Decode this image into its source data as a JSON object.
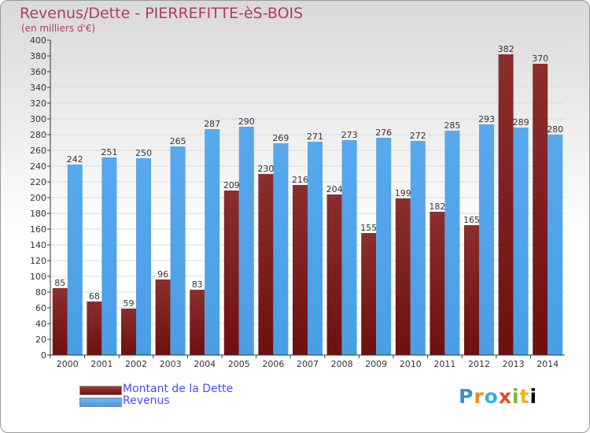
{
  "header": {
    "title": "Revenus/Dette - PIERREFITTE-èS-BOIS",
    "subtitle": "(en milliers d'€)"
  },
  "legend": {
    "items": [
      {
        "label": "Montant de la Dette",
        "color": "#6e1010"
      },
      {
        "label": "Revenus",
        "color": "#4a9ee6"
      }
    ]
  },
  "logo": {
    "letters": [
      "P",
      "r",
      "o",
      "x",
      "i",
      "t",
      "i"
    ]
  },
  "colors": {
    "debt": "#6e1010",
    "revenue": "#4a9ee6",
    "grid": "#dddddd",
    "axis": "#333333",
    "text": "#333333"
  },
  "chart_data": {
    "type": "bar",
    "categories": [
      "2000",
      "2001",
      "2002",
      "2003",
      "2004",
      "2005",
      "2006",
      "2007",
      "2008",
      "2009",
      "2010",
      "2011",
      "2012",
      "2013",
      "2014"
    ],
    "series": [
      {
        "name": "Montant de la Dette",
        "values": [
          85,
          68,
          59,
          96,
          83,
          209,
          230,
          216,
          204,
          155,
          199,
          182,
          165,
          382,
          370
        ]
      },
      {
        "name": "Revenus",
        "values": [
          242,
          251,
          250,
          265,
          287,
          290,
          269,
          271,
          273,
          276,
          272,
          285,
          293,
          289,
          280
        ]
      }
    ],
    "ylim": [
      0,
      400
    ],
    "ytick_step": 20,
    "grid": true,
    "legend_position": "bottom-left"
  }
}
